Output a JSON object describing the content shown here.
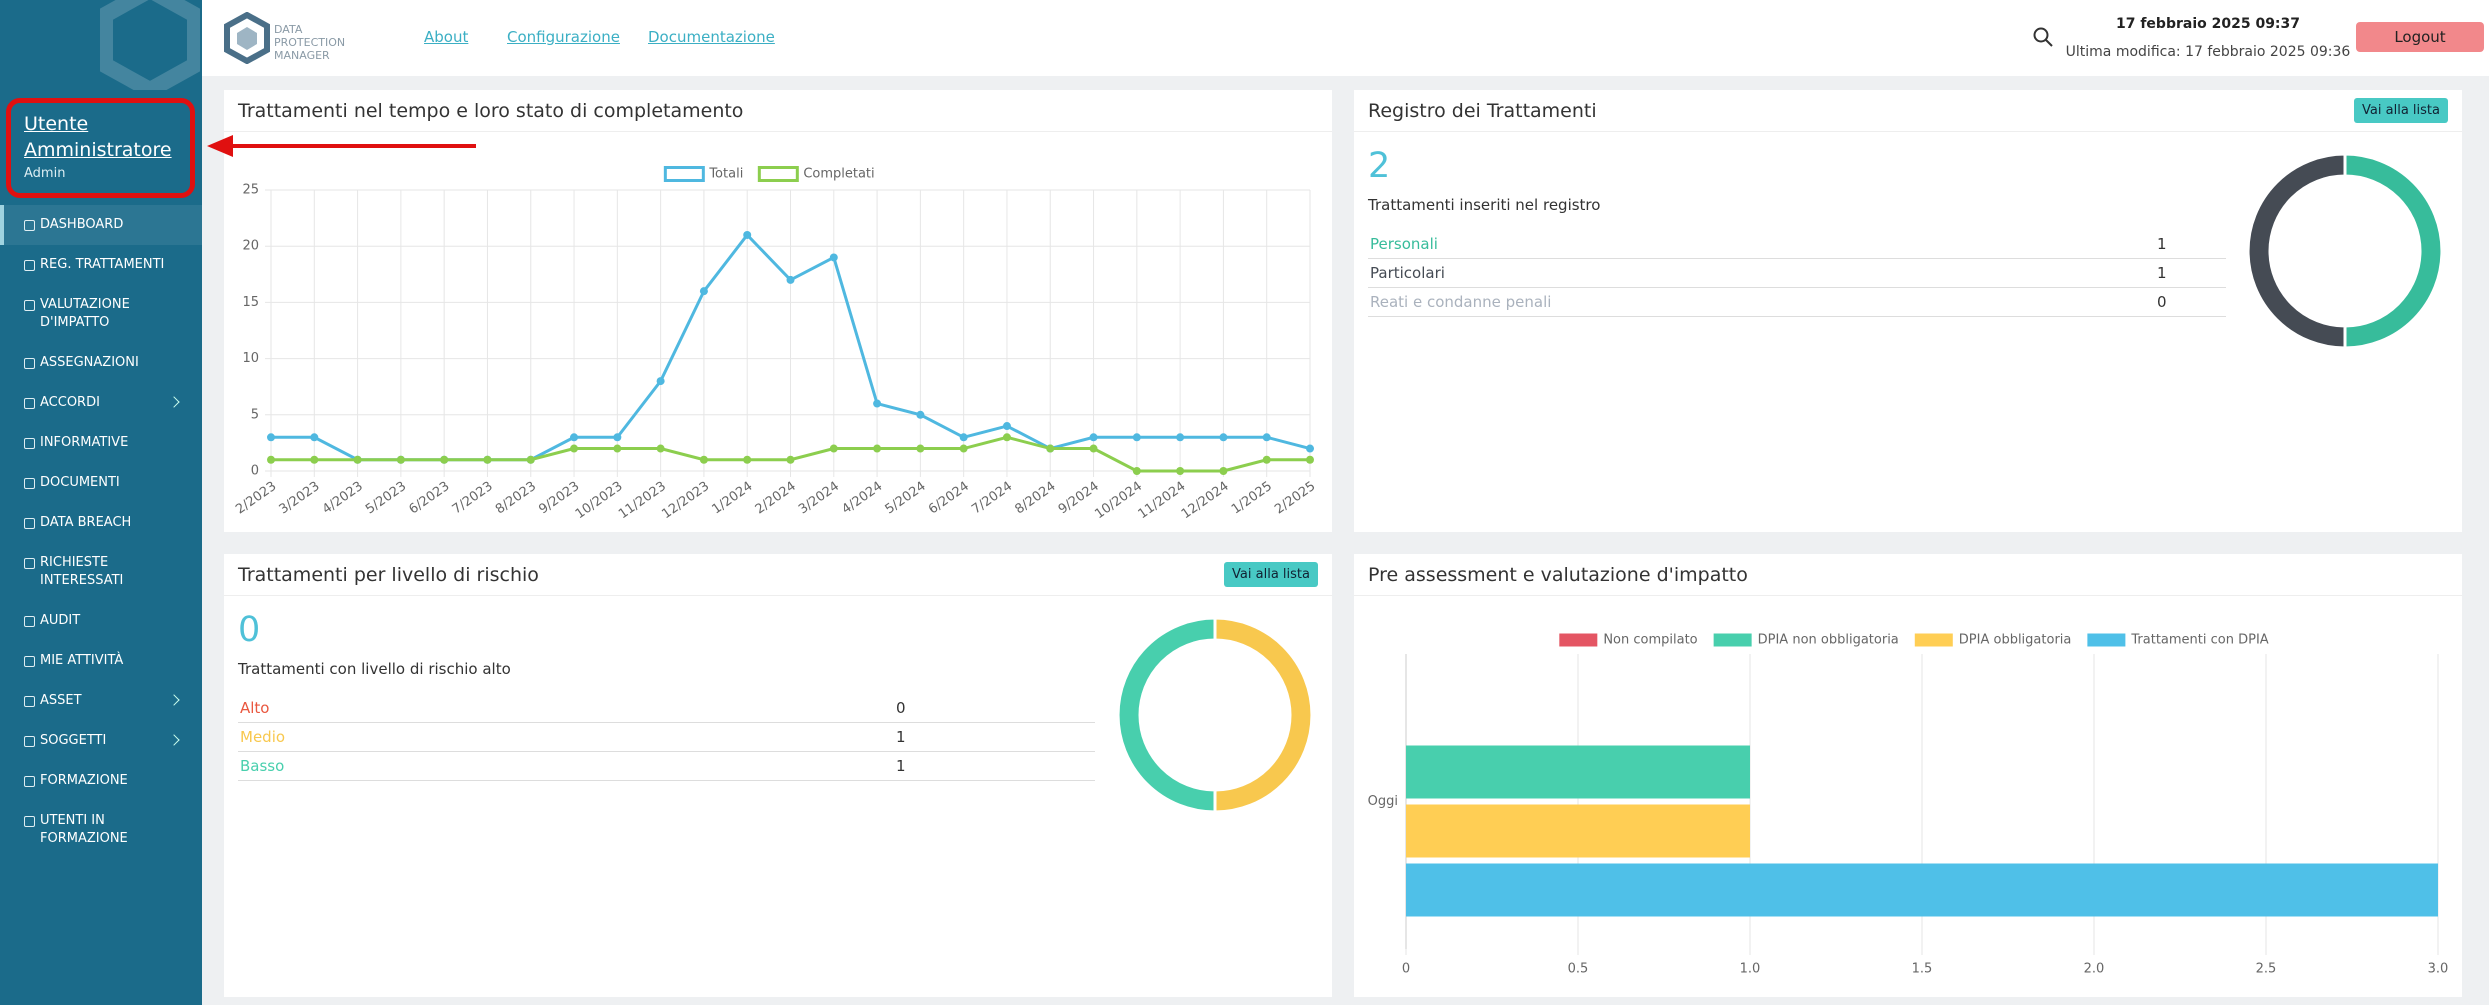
{
  "sidebar": {
    "user_name": "Utente Amministratore",
    "user_role": "Admin",
    "menu": [
      {
        "label": "DASHBOARD",
        "active": true
      },
      {
        "label": "REG. TRATTAMENTI"
      },
      {
        "label": "VALUTAZIONE D'IMPATTO"
      },
      {
        "label": "ASSEGNAZIONI"
      },
      {
        "label": "ACCORDI",
        "has_submenu": true
      },
      {
        "label": "INFORMATIVE"
      },
      {
        "label": "DOCUMENTI"
      },
      {
        "label": "DATA BREACH"
      },
      {
        "label": "RICHIESTE INTERESSATI"
      },
      {
        "label": "AUDIT"
      },
      {
        "label": "MIE ATTIVITÀ"
      },
      {
        "label": "ASSET",
        "has_submenu": true
      },
      {
        "label": "SOGGETTI",
        "has_submenu": true
      },
      {
        "label": "FORMAZIONE"
      },
      {
        "label": "UTENTI IN FORMAZIONE"
      }
    ]
  },
  "header": {
    "brand": [
      "DATA",
      "PROTECTION",
      "MANAGER"
    ],
    "links": [
      "About",
      "Configurazione",
      "Documentazione"
    ],
    "datetime": "17 febbraio 2025 09:37",
    "last_modified": "Ultima modifica: 17 febbraio 2025 09:36",
    "logout": "Logout"
  },
  "chart_data": [
    {
      "type": "line",
      "title": "Trattamenti nel tempo e loro stato di completamento",
      "categories": [
        "2/2023",
        "3/2023",
        "4/2023",
        "5/2023",
        "6/2023",
        "7/2023",
        "8/2023",
        "9/2023",
        "10/2023",
        "11/2023",
        "12/2023",
        "1/2024",
        "2/2024",
        "3/2024",
        "4/2024",
        "5/2024",
        "6/2024",
        "7/2024",
        "8/2024",
        "9/2024",
        "10/2024",
        "11/2024",
        "12/2024",
        "1/2025",
        "2/2025"
      ],
      "series": [
        {
          "name": "Totali",
          "color": "#4fb8e0",
          "values": [
            3,
            3,
            1,
            1,
            1,
            1,
            1,
            3,
            3,
            8,
            16,
            21,
            17,
            19,
            6,
            5,
            3,
            4,
            2,
            3,
            3,
            3,
            3,
            3,
            2
          ]
        },
        {
          "name": "Completati",
          "color": "#8cce4e",
          "values": [
            1,
            1,
            1,
            1,
            1,
            1,
            1,
            2,
            2,
            2,
            1,
            1,
            1,
            2,
            2,
            2,
            2,
            3,
            2,
            2,
            0,
            0,
            0,
            1,
            1
          ]
        }
      ],
      "ylim": [
        0,
        25
      ],
      "yticks": [
        0,
        5,
        10,
        15,
        20,
        25
      ],
      "grid": true
    },
    {
      "type": "doughnut",
      "title": "Registro dei Trattamenti",
      "button": "Vai alla lista",
      "total": 2,
      "total_label": "Trattamenti inseriti nel registro",
      "categories": [
        "Personali",
        "Particolari",
        "Reati e condanne penali"
      ],
      "values": [
        1,
        1,
        0
      ],
      "colors": [
        "#37bc9b",
        "#454b54",
        "#aab2bd"
      ]
    },
    {
      "type": "doughnut",
      "title": "Trattamenti per livello di rischio",
      "button": "Vai alla lista",
      "total": 0,
      "total_label": "Trattamenti con livello di rischio alto",
      "categories": [
        "Alto",
        "Medio",
        "Basso"
      ],
      "values": [
        0,
        1,
        1
      ],
      "colors": [
        "#e9573f",
        "#f8c84e",
        "#48cfad"
      ]
    },
    {
      "type": "bar",
      "orientation": "horizontal",
      "title": "Pre assessment e valutazione d'impatto",
      "categories": [
        "Oggi"
      ],
      "series": [
        {
          "name": "Non compilato",
          "color": "#e45563",
          "values": [
            0
          ]
        },
        {
          "name": "DPIA non obbligatoria",
          "color": "#48cfad",
          "values": [
            1
          ]
        },
        {
          "name": "DPIA obbligatoria",
          "color": "#ffce54",
          "values": [
            1
          ]
        },
        {
          "name": "Trattamenti con DPIA",
          "color": "#4fc0e8",
          "values": [
            3
          ]
        }
      ],
      "xlim": [
        0,
        3
      ],
      "xticks": [
        0,
        0.5,
        {
          "value": 1,
          "label": "1.0"
        },
        1.5,
        {
          "value": 2,
          "label": "2.0"
        },
        2.5,
        {
          "value": 3,
          "label": "3.0"
        }
      ],
      "grid": true
    }
  ]
}
